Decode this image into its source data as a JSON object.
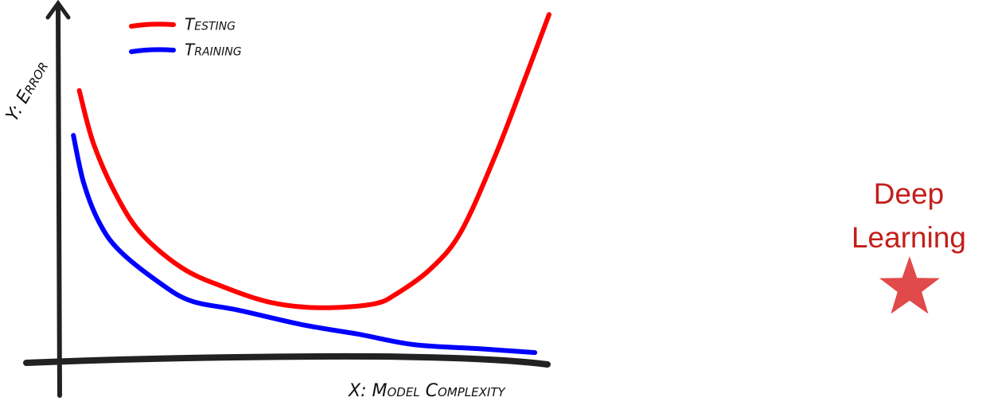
{
  "chart_data": {
    "type": "line",
    "axis_labels": {
      "y": "Y: Error",
      "x": "X: Model Complexity"
    },
    "xlim": [
      0,
      10
    ],
    "ylim": [
      0,
      10
    ],
    "series": [
      {
        "name": "Testing",
        "color": "#ff0000",
        "x": [
          0.4,
          0.7,
          1.2,
          1.7,
          2.5,
          3.3,
          4.3,
          5.3,
          6.4,
          6.9,
          7.6,
          8.2,
          8.9,
          9.5,
          10.0
        ],
        "values": [
          7.5,
          6.0,
          4.5,
          3.5,
          2.6,
          2.1,
          1.65,
          1.5,
          1.6,
          1.9,
          2.6,
          3.6,
          5.7,
          7.8,
          9.6
        ]
      },
      {
        "name": "Training",
        "color": "#0000ff",
        "x": [
          0.28,
          0.49,
          0.81,
          1.22,
          2.03,
          2.68,
          3.66,
          4.96,
          6.1,
          7.24,
          8.54,
          9.71
        ],
        "values": [
          6.26,
          4.95,
          3.85,
          3.08,
          2.2,
          1.69,
          1.43,
          1.03,
          0.77,
          0.48,
          0.37,
          0.26
        ]
      }
    ],
    "annotation": {
      "lines": [
        "Deep",
        "Learning"
      ],
      "color": "#c41e1a"
    }
  }
}
